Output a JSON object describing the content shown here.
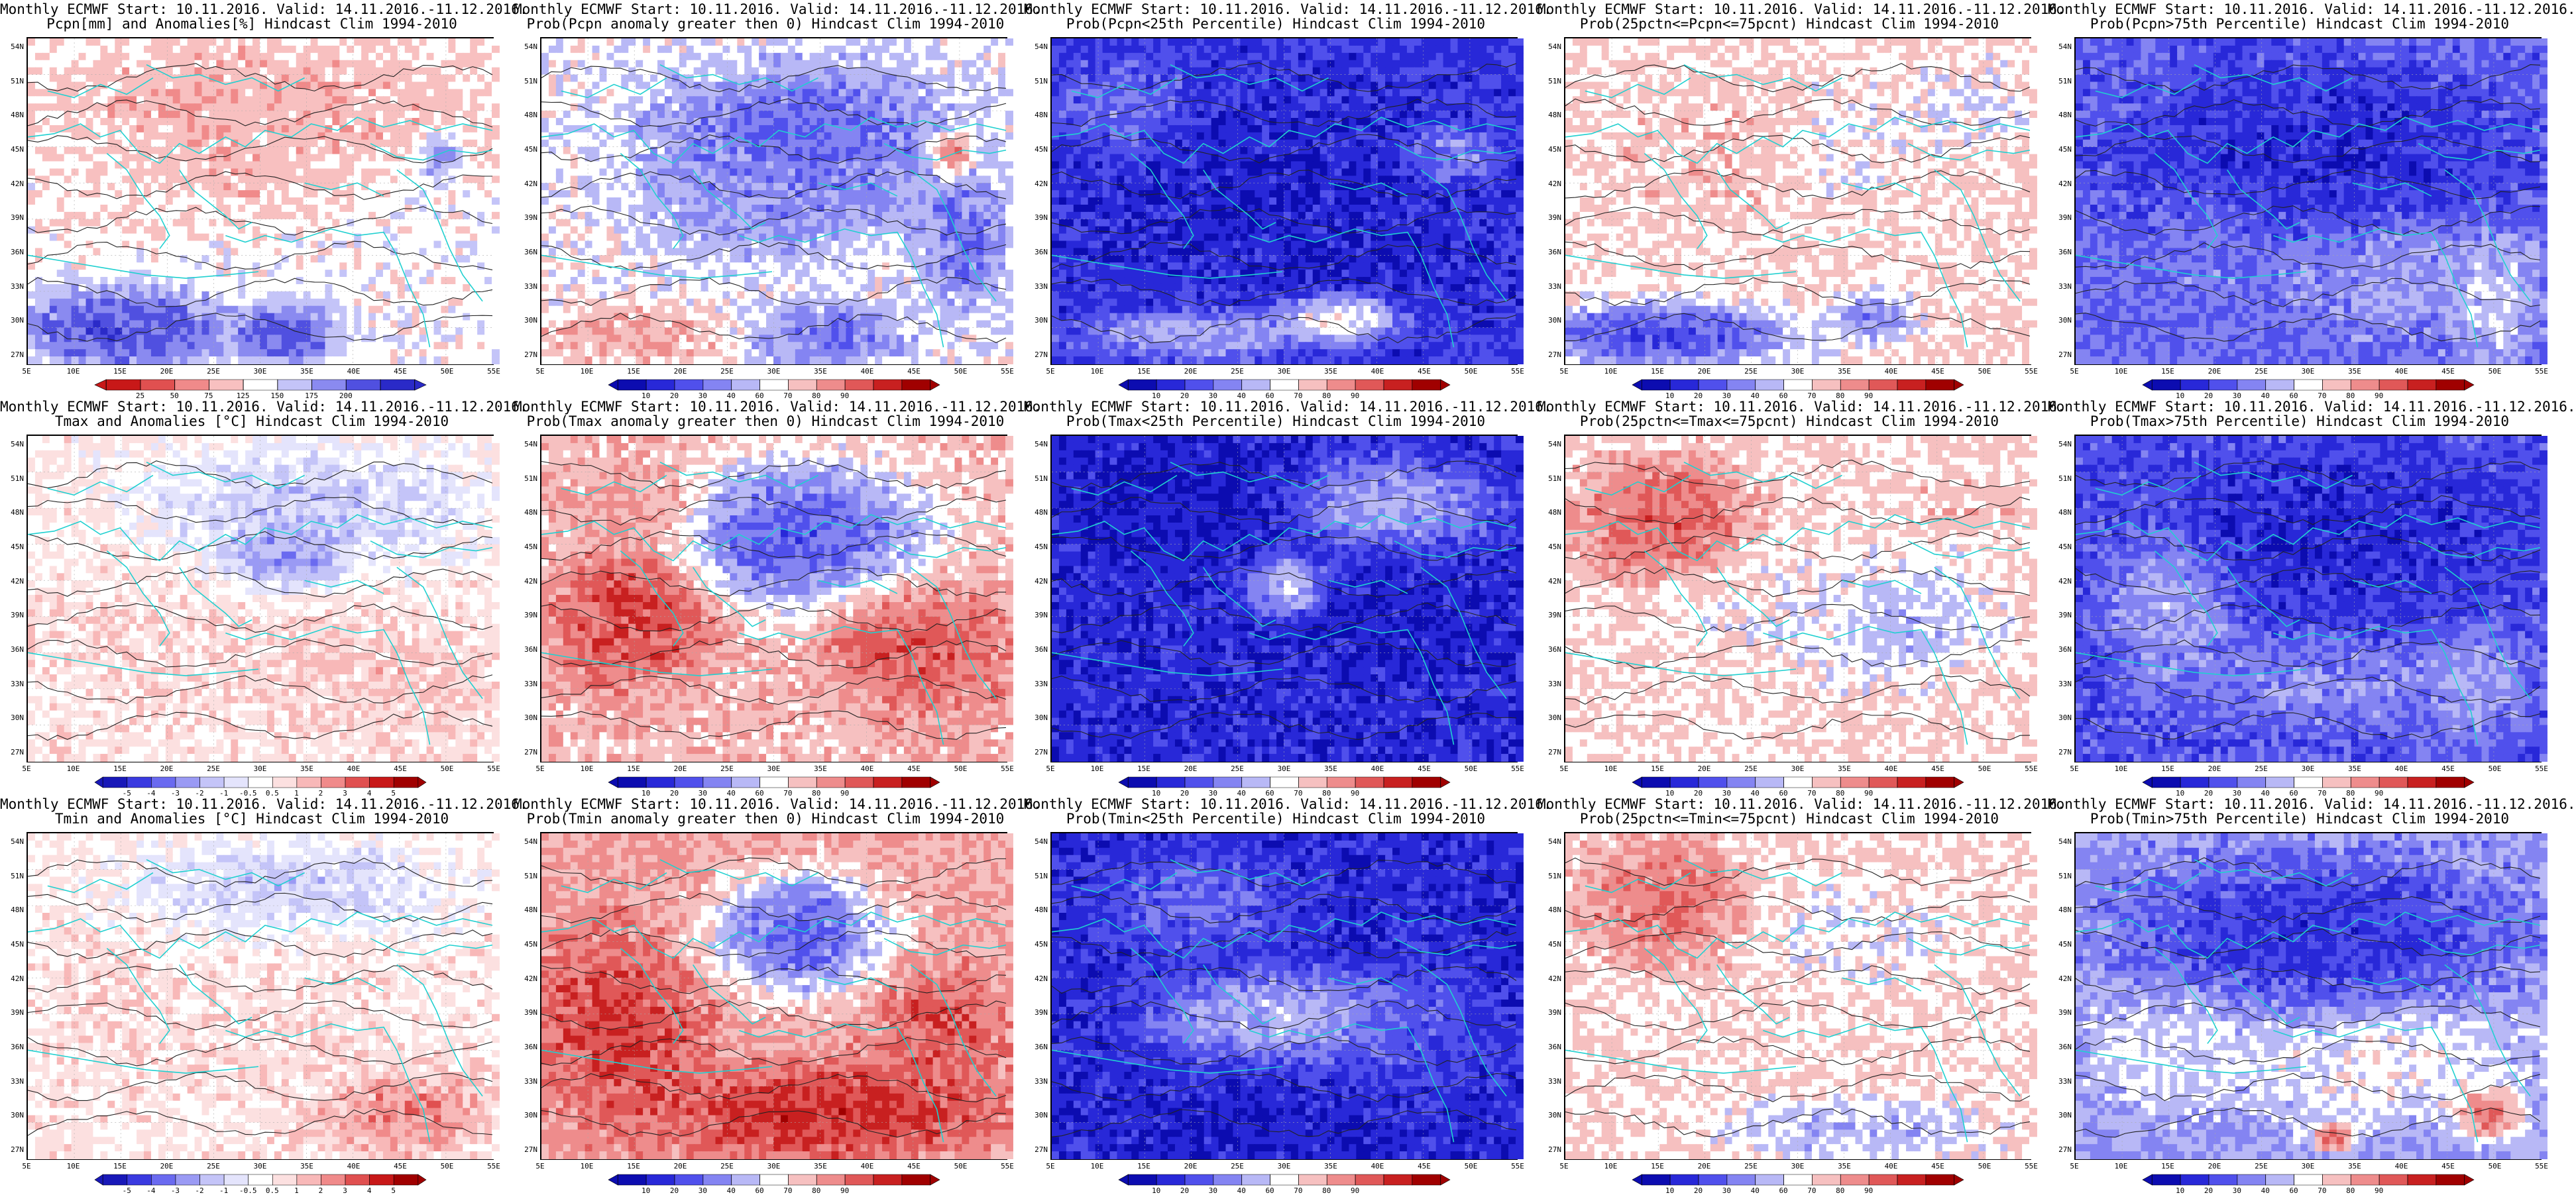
{
  "map_panel": {
    "lat_labels": [
      "54N",
      "51N",
      "48N",
      "45N",
      "42N",
      "39N",
      "36N",
      "33N",
      "30N",
      "27N"
    ],
    "lon_labels": [
      "5E",
      "10E",
      "15E",
      "20E",
      "25E",
      "30E",
      "35E",
      "40E",
      "45E",
      "50E",
      "55E"
    ]
  },
  "colors": {
    "dry": "#c80000",
    "wet": "#0000c8",
    "coast": "#20d0d0",
    "contour": "#222222"
  },
  "scales": {
    "pcpn": [
      "25",
      "50",
      "75",
      "125",
      "150",
      "175",
      "200"
    ],
    "prob": [
      "10",
      "20",
      "30",
      "40",
      "60",
      "70",
      "80",
      "90"
    ],
    "anom": [
      "-5",
      "-4",
      "-3",
      "-2",
      "-1",
      "-0.5",
      "0.5",
      "1",
      "2",
      "3",
      "4",
      "5"
    ]
  },
  "panels": [
    {
      "line1": "Monthly ECMWF Start: 10.11.2016. Valid: 14.11.2016.-11.12.2016.",
      "line2": "Pcpn[mm] and Anomalies[%] Hindcast Clim 1994-2010",
      "scale": "pcpn",
      "pattern": "p1"
    },
    {
      "line1": "Monthly ECMWF Start: 10.11.2016. Valid: 14.11.2016.-11.12.2016.",
      "line2": "Prob(Pcpn anomaly greater then 0) Hindcast Clim 1994-2010",
      "scale": "prob",
      "pattern": "p2"
    },
    {
      "line1": "Monthly ECMWF Start: 10.11.2016. Valid: 14.11.2016.-11.12.2016.",
      "line2": "Prob(Pcpn<25th Percentile) Hindcast Clim 1994-2010",
      "scale": "prob",
      "pattern": "p3"
    },
    {
      "line1": "Monthly ECMWF Start: 10.11.2016. Valid: 14.11.2016.-11.12.2016.",
      "line2": "Prob(25pctn<=Pcpn<=75pcnt) Hindcast Clim 1994-2010",
      "scale": "prob",
      "pattern": "p4"
    },
    {
      "line1": "Monthly ECMWF Start: 10.11.2016. Valid: 14.11.2016.-11.12.2016.",
      "line2": "Prob(Pcpn>75th Percentile) Hindcast Clim 1994-2010",
      "scale": "prob",
      "pattern": "p5"
    },
    {
      "line1": "Monthly ECMWF Start: 10.11.2016. Valid: 14.11.2016.-11.12.2016.",
      "line2": "Tmax and Anomalies [°C] Hindcast Clim 1994-2010",
      "scale": "anom",
      "pattern": "t1"
    },
    {
      "line1": "Monthly ECMWF Start: 10.11.2016. Valid: 14.11.2016.-11.12.2016.",
      "line2": "Prob(Tmax anomaly greater then 0) Hindcast Clim 1994-2010",
      "scale": "prob",
      "pattern": "t2"
    },
    {
      "line1": "Monthly ECMWF Start: 10.11.2016. Valid: 14.11.2016.-11.12.2016.",
      "line2": "Prob(Tmax<25th Percentile) Hindcast Clim 1994-2010",
      "scale": "prob",
      "pattern": "t3"
    },
    {
      "line1": "Monthly ECMWF Start: 10.11.2016. Valid: 14.11.2016.-11.12.2016.",
      "line2": "Prob(25pctn<=Tmax<=75pcnt) Hindcast Clim 1994-2010",
      "scale": "prob",
      "pattern": "t4"
    },
    {
      "line1": "Monthly ECMWF Start: 10.11.2016. Valid: 14.11.2016.-11.12.2016.",
      "line2": "Prob(Tmax>75th Percentile) Hindcast Clim 1994-2010",
      "scale": "prob",
      "pattern": "t5"
    },
    {
      "line1": "Monthly ECMWF Start: 10.11.2016. Valid: 14.11.2016.-11.12.2016.",
      "line2": "Tmin and Anomalies [°C] Hindcast Clim 1994-2010",
      "scale": "anom",
      "pattern": "n1"
    },
    {
      "line1": "Monthly ECMWF Start: 10.11.2016. Valid: 14.11.2016.-11.12.2016.",
      "line2": "Prob(Tmin anomaly greater then 0) Hindcast Clim 1994-2010",
      "scale": "prob",
      "pattern": "n2"
    },
    {
      "line1": "Monthly ECMWF Start: 10.11.2016. Valid: 14.11.2016.-11.12.2016.",
      "line2": "Prob(Tmin<25th Percentile) Hindcast Clim 1994-2010",
      "scale": "prob",
      "pattern": "n3"
    },
    {
      "line1": "Monthly ECMWF Start: 10.11.2016. Valid: 14.11.2016.-11.12.2016.",
      "line2": "Prob(25pctn<=Tmin<=75pcnt) Hindcast Clim 1994-2010",
      "scale": "prob",
      "pattern": "n4"
    },
    {
      "line1": "Monthly ECMWF Start: 10.11.2016. Valid: 14.11.2016.-11.12.2016.",
      "line2": "Prob(Tmin>75th Percentile) Hindcast Clim 1994-2010",
      "scale": "prob",
      "pattern": "n5"
    }
  ]
}
